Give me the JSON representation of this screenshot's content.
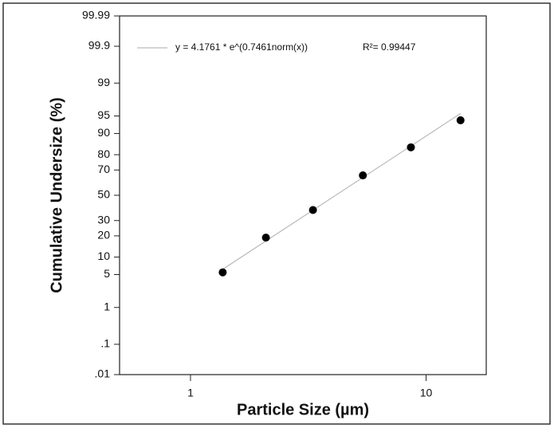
{
  "chart_data": {
    "type": "probability-scatter",
    "xlabel": "Particle Size (µm)",
    "ylabel": "Cumulative Undersize (%)",
    "x": [
      1.37,
      2.09,
      3.31,
      5.39,
      8.62,
      14.0
    ],
    "values": [
      5.5,
      19,
      38,
      66,
      84,
      94
    ],
    "color": "#000000",
    "fit": {
      "name": "y = 4.1761 * e^(0.7461norm(x))",
      "x": [
        1.35,
        14
      ],
      "values": [
        6,
        95.5
      ],
      "color": "#bbbbbb"
    },
    "r_squared": "R²= 0.99447",
    "xscale": "log",
    "xlim": [
      0.5,
      18
    ],
    "xticks": [
      1,
      10
    ],
    "yscale": "probability",
    "ylim": [
      0.01,
      99.99
    ],
    "yticks": [
      99.99,
      99.9,
      99,
      95,
      90,
      80,
      70,
      50,
      30,
      20,
      10,
      5,
      1,
      {
        "value": 0.1,
        "label": ".1"
      },
      {
        "value": 0.01,
        "label": ".01"
      }
    ]
  }
}
